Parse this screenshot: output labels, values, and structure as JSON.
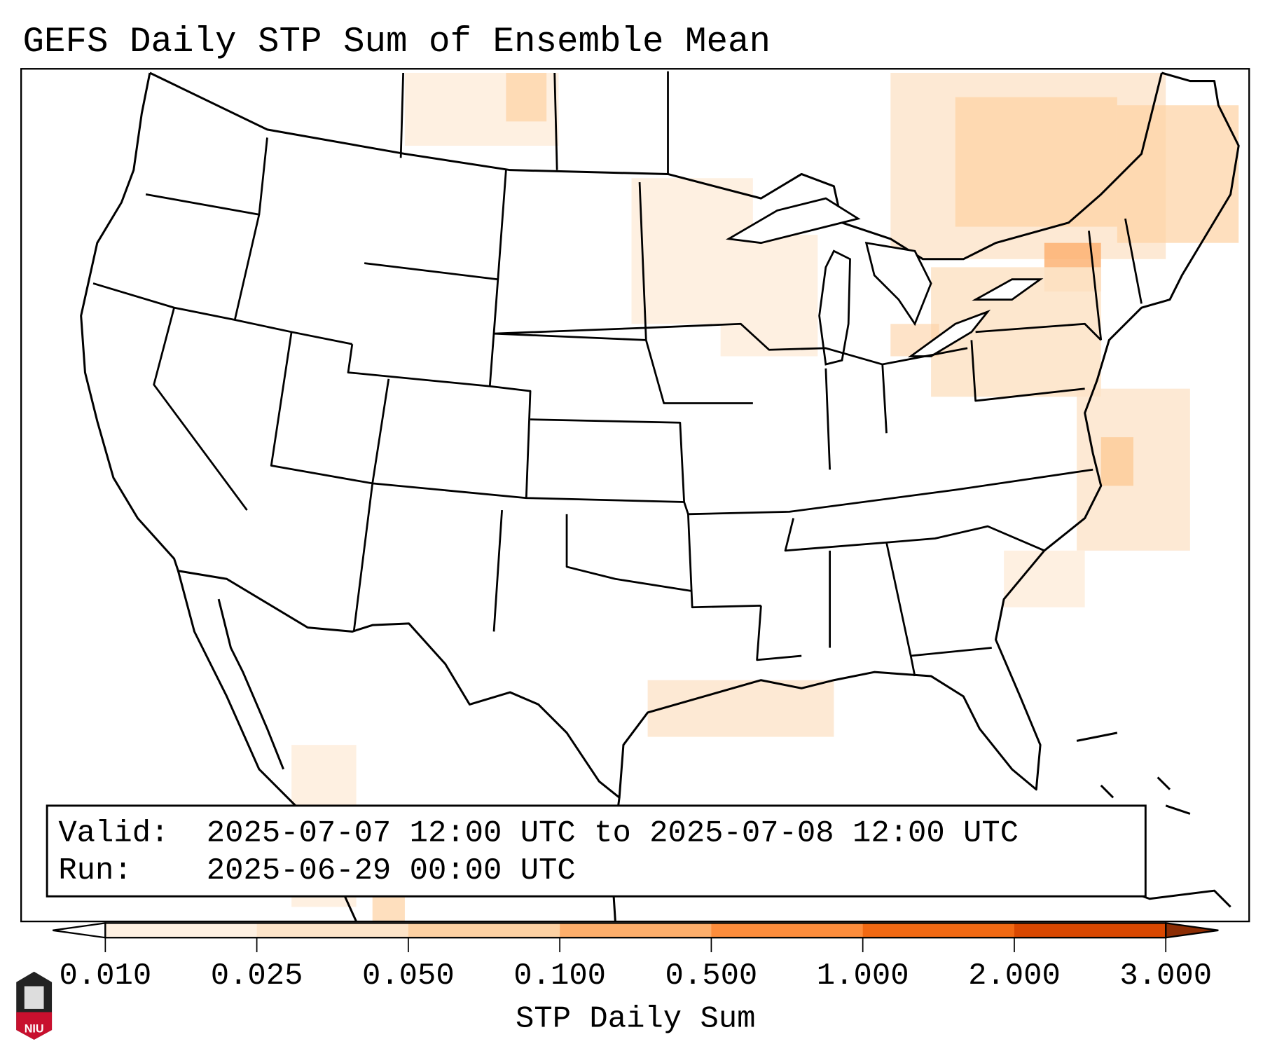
{
  "title": "GEFS Daily STP Sum of Ensemble Mean",
  "legend": {
    "valid_label": "Valid:",
    "valid_value": "2025-07-07 12:00 UTC to 2025-07-08 12:00 UTC",
    "run_label": "Run:",
    "run_value": "2025-06-29 00:00 UTC"
  },
  "colorbar": {
    "label": "STP Daily Sum",
    "ticks": [
      "0.010",
      "0.025",
      "0.050",
      "0.100",
      "0.500",
      "1.000",
      "2.000",
      "3.000"
    ],
    "colors": [
      "#fef0e1",
      "#fde4c9",
      "#fdd1a3",
      "#fdae6b",
      "#fd8d3c",
      "#f16913",
      "#d94801"
    ],
    "under_color": "#ffffff",
    "over_color": "#8c2d04"
  },
  "logo": {
    "text": "NIU",
    "color": "#c8102e"
  },
  "chart_data": {
    "type": "heatmap",
    "title": "GEFS Daily STP Sum of Ensemble Mean",
    "colorbar_label": "STP Daily Sum",
    "levels": [
      0.01,
      0.025,
      0.05,
      0.1,
      0.5,
      1.0,
      2.0,
      3.0
    ],
    "region": "Continental United States",
    "max_area": "New York / New England / southern Quebec"
  }
}
